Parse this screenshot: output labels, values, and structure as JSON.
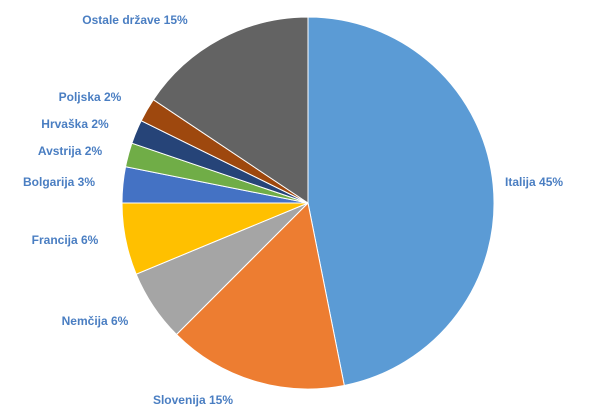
{
  "chart_data": {
    "type": "pie",
    "title": "",
    "slices": [
      {
        "label": "Italija 45%",
        "value": 45,
        "color": "#5b9bd5"
      },
      {
        "label": "Slovenija 15%",
        "value": 15,
        "color": "#ed7d31"
      },
      {
        "label": "Nemčija 6%",
        "value": 6,
        "color": "#a5a5a5"
      },
      {
        "label": "Francija 6%",
        "value": 6,
        "color": "#ffc000"
      },
      {
        "label": "Bolgarija 3%",
        "value": 3,
        "color": "#4472c4"
      },
      {
        "label": "Avstrija 2%",
        "value": 2,
        "color": "#70ad47"
      },
      {
        "label": "Hrvaška 2%",
        "value": 2,
        "color": "#264478"
      },
      {
        "label": "Poljska 2%",
        "value": 2,
        "color": "#9e480e"
      },
      {
        "label": "Ostale države 15%",
        "value": 15,
        "color": "#636363"
      }
    ],
    "start_angle": "top",
    "direction": "clockwise",
    "legend": "none",
    "data_labels": "outside"
  }
}
